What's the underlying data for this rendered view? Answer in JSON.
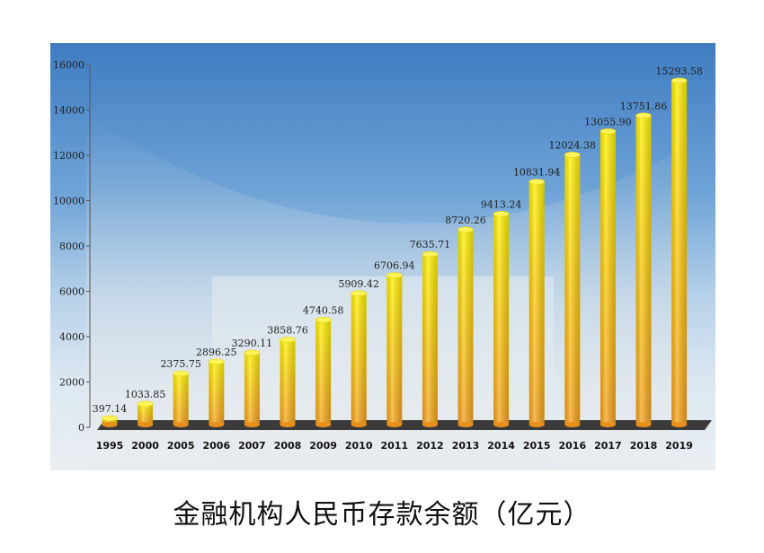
{
  "caption": "金融机构人民币存款余额（亿元）",
  "chart_data": {
    "type": "bar",
    "title": "金融机构人民币存款余额（亿元）",
    "categories": [
      "1995",
      "2000",
      "2005",
      "2006",
      "2007",
      "2008",
      "2009",
      "2010",
      "2011",
      "2012",
      "2013",
      "2014",
      "2015",
      "2016",
      "2017",
      "2018",
      "2019"
    ],
    "values": [
      397.14,
      1033.85,
      2375.75,
      2896.25,
      3290.11,
      3858.76,
      4740.58,
      5909.42,
      6706.94,
      7635.71,
      8720.26,
      9413.24,
      10831.94,
      12024.38,
      13055.9,
      13751.86,
      15293.58
    ],
    "value_labels": [
      "397.14",
      "1033.85",
      "2375.75",
      "2896.25",
      "3290.11",
      "3858.76",
      "4740.58",
      "5909.42",
      "6706.94",
      "7635.71",
      "8720.26",
      "9413.24",
      "10831.94",
      "12024.38",
      "13055.90",
      "13751.86",
      "15293.58"
    ],
    "yticks": [
      "0",
      "2000",
      "4000",
      "6000",
      "8000",
      "10000",
      "12000",
      "14000",
      "16000"
    ],
    "ylim": [
      0,
      16000
    ],
    "xlabel": "",
    "ylabel": "",
    "grid": false,
    "legend": "none",
    "colors": {
      "bar_top": "#fff000",
      "bar_bottom": "#f7a21b",
      "floor": "#333333"
    }
  }
}
